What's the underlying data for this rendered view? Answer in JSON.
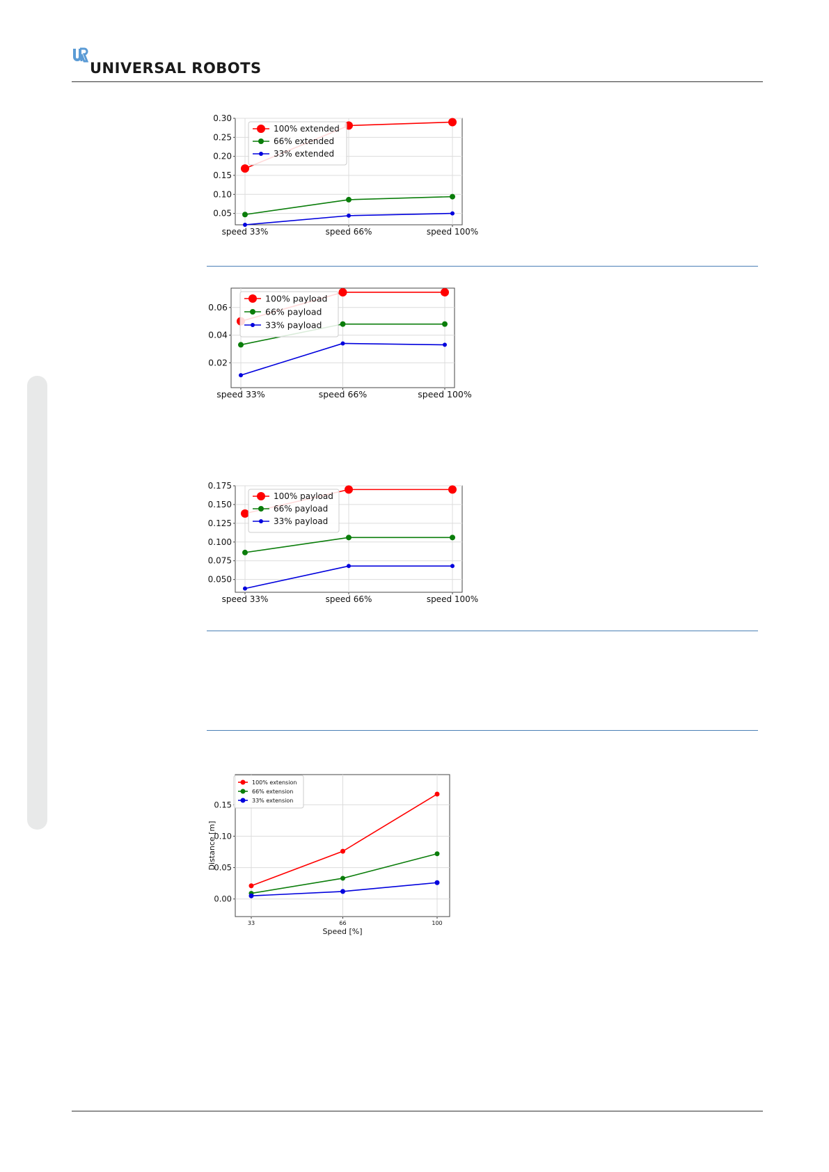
{
  "header": {
    "brand": "UNIVERSAL ROBOTS",
    "logo_icon": "ur-logo-icon"
  },
  "colors": {
    "red": "#ff0000",
    "green": "#0a7d0a",
    "blue": "#0000dd",
    "rule": "#333333",
    "separator": "#4a7fb5",
    "side_tab": "#e8e9e9"
  },
  "chart_data": [
    {
      "type": "line",
      "categories": [
        "speed 33%",
        "speed 66%",
        "speed 100%"
      ],
      "ylim": [
        0.02,
        0.3
      ],
      "yticks": [
        "0.30",
        "0.25",
        "0.20",
        "0.15",
        "0.10",
        "0.05"
      ],
      "grid": true,
      "legend": "top-left",
      "series": [
        {
          "name": "100% extended",
          "values": [
            0.168,
            0.281,
            0.29
          ],
          "color": "#ff0000"
        },
        {
          "name": "66% extended",
          "values": [
            0.047,
            0.086,
            0.094
          ],
          "color": "#0a7d0a"
        },
        {
          "name": "33% extended",
          "values": [
            0.02,
            0.044,
            0.05
          ],
          "color": "#0000dd"
        }
      ]
    },
    {
      "type": "line",
      "categories": [
        "speed 33%",
        "speed 66%",
        "speed 100%"
      ],
      "ylim": [
        0.002,
        0.074
      ],
      "yticks": [
        "0.06",
        "0.04",
        "0.02"
      ],
      "grid": true,
      "legend": "top-left",
      "series": [
        {
          "name": "100% payload",
          "values": [
            0.05,
            0.071,
            0.071
          ],
          "color": "#ff0000"
        },
        {
          "name": "66% payload",
          "values": [
            0.033,
            0.048,
            0.048
          ],
          "color": "#0a7d0a"
        },
        {
          "name": "33% payload",
          "values": [
            0.011,
            0.034,
            0.033
          ],
          "color": "#0000dd"
        }
      ]
    },
    {
      "type": "line",
      "categories": [
        "speed 33%",
        "speed 66%",
        "speed 100%"
      ],
      "ylim": [
        0.033,
        0.175
      ],
      "yticks": [
        "0.175",
        "0.150",
        "0.125",
        "0.100",
        "0.075",
        "0.050"
      ],
      "grid": true,
      "legend": "top-left",
      "series": [
        {
          "name": "100% payload",
          "values": [
            0.138,
            0.17,
            0.17
          ],
          "color": "#ff0000"
        },
        {
          "name": "66% payload",
          "values": [
            0.086,
            0.106,
            0.106
          ],
          "color": "#0a7d0a"
        },
        {
          "name": "33% payload",
          "values": [
            0.038,
            0.068,
            0.068
          ],
          "color": "#0000dd"
        }
      ]
    },
    {
      "type": "line",
      "x": [
        33,
        66,
        100
      ],
      "xticks": [
        "33",
        "66",
        "100"
      ],
      "xlabel": "Speed [%]",
      "ylabel": "Distance [m]",
      "ylim": [
        -0.028,
        0.198
      ],
      "yticks": [
        "0.15",
        "0.10",
        "0.05",
        "0.00"
      ],
      "grid": true,
      "legend": "top-left",
      "series": [
        {
          "name": "100% extension",
          "values": [
            0.021,
            0.076,
            0.167
          ],
          "color": "#ff0000"
        },
        {
          "name": "66% extension",
          "values": [
            0.009,
            0.033,
            0.072
          ],
          "color": "#0a7d0a"
        },
        {
          "name": "33% extension",
          "values": [
            0.005,
            0.012,
            0.026
          ],
          "color": "#0000dd"
        }
      ]
    }
  ]
}
